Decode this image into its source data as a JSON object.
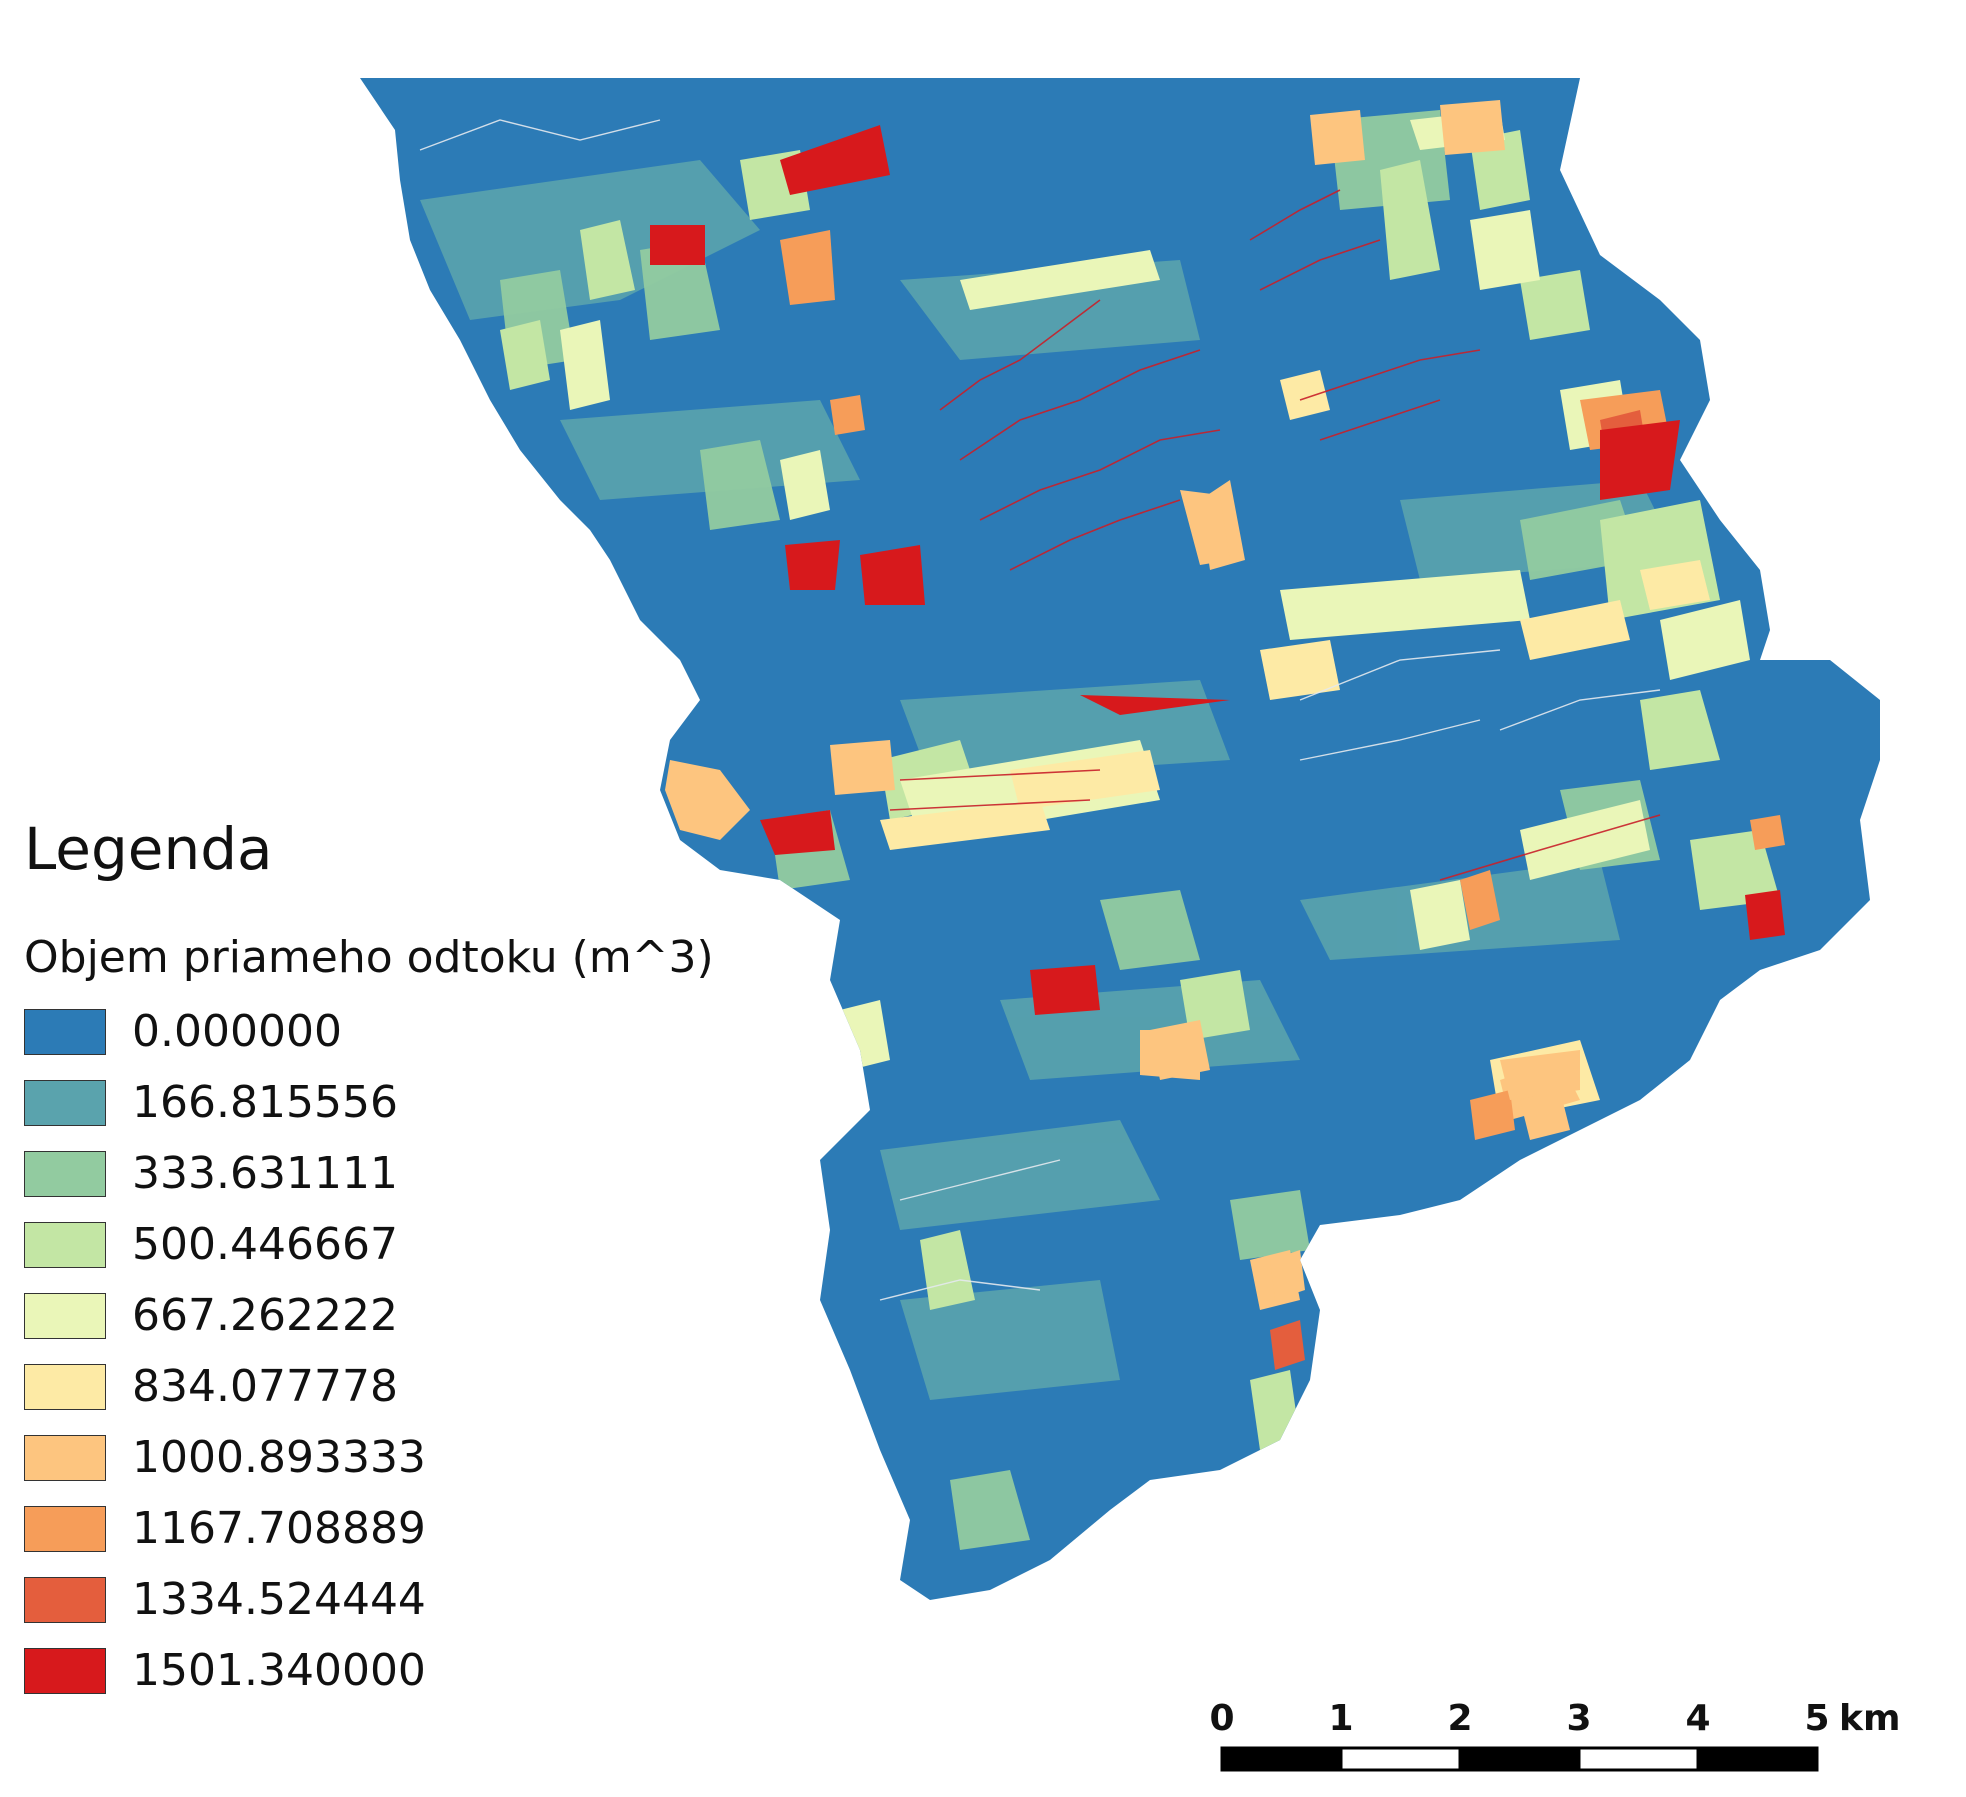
{
  "legend": {
    "title": "Legenda",
    "subtitle": "Objem priameho odtoku (m^3)",
    "classes": [
      {
        "value": "0.000000",
        "color": "#2c7bb6"
      },
      {
        "value": "166.815556",
        "color": "#5aa3ad"
      },
      {
        "value": "333.631111",
        "color": "#92cba0"
      },
      {
        "value": "500.446667",
        "color": "#c3e6a4"
      },
      {
        "value": "667.262222",
        "color": "#eaf6b8"
      },
      {
        "value": "834.077778",
        "color": "#fdeaa5"
      },
      {
        "value": "1000.893333",
        "color": "#fdc57f"
      },
      {
        "value": "1167.708889",
        "color": "#f69d59"
      },
      {
        "value": "1334.524444",
        "color": "#e45e3d"
      },
      {
        "value": "1501.340000",
        "color": "#d7191c"
      }
    ]
  },
  "scalebar": {
    "ticks": [
      "0",
      "1",
      "2",
      "3",
      "4",
      "5"
    ],
    "unit": "km"
  }
}
